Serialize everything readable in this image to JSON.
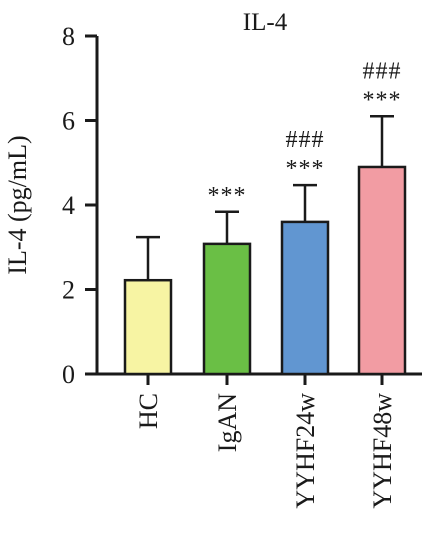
{
  "chart_data": {
    "type": "bar",
    "title": "IL-4",
    "ylabel": "IL-4 (pg/mL)",
    "xlabel": "",
    "ylim": [
      0,
      8
    ],
    "yticks": [
      0,
      2,
      4,
      6,
      8
    ],
    "categories": [
      "HC",
      "IgAN",
      "YYHF24w",
      "YYHF48w"
    ],
    "values": [
      2.22,
      3.08,
      3.6,
      4.9
    ],
    "errors": [
      1.02,
      0.76,
      0.87,
      1.2
    ],
    "colors": [
      "#f7f4a3",
      "#6abf45",
      "#6196d1",
      "#f29ca3"
    ],
    "annotations": [
      [],
      [
        "***"
      ],
      [
        "###",
        "***"
      ],
      [
        "###",
        "***"
      ]
    ]
  }
}
